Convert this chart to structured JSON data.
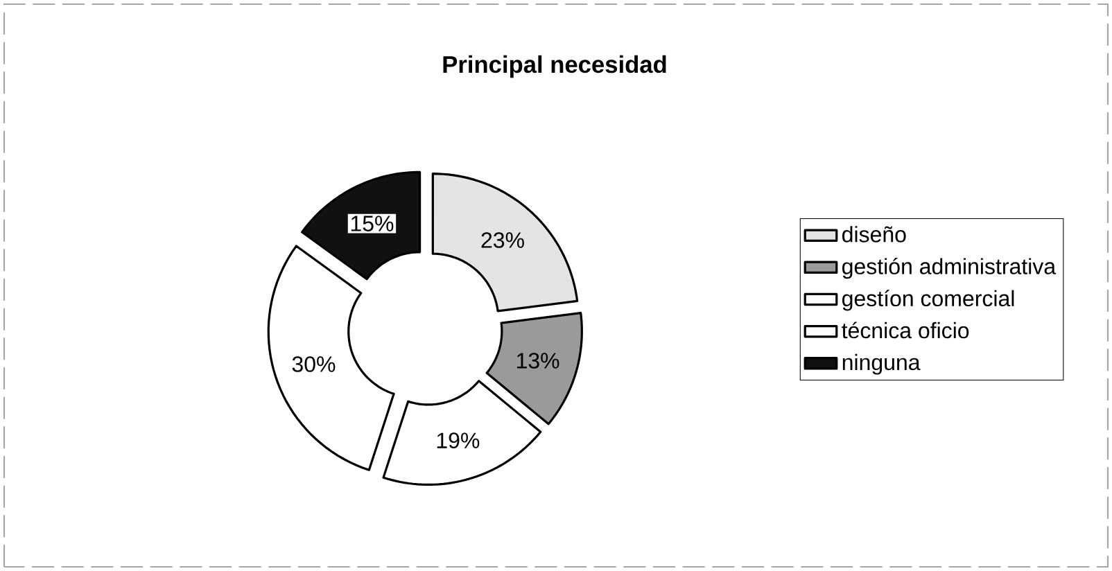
{
  "chart_data": {
    "type": "donut",
    "title": "Principal necesidad",
    "categories": [
      "diseño",
      "gestión administrativa",
      "gestíon comercial",
      "técnica oficio",
      "ninguna"
    ],
    "values": [
      23,
      13,
      19,
      30,
      15
    ],
    "colors": [
      "#e4e4e4",
      "#9a9a9a",
      "#ffffff",
      "#ffffff",
      "#111111"
    ],
    "value_labels": [
      "23%",
      "13%",
      "19%",
      "30%",
      "15%"
    ],
    "legend": "right"
  }
}
